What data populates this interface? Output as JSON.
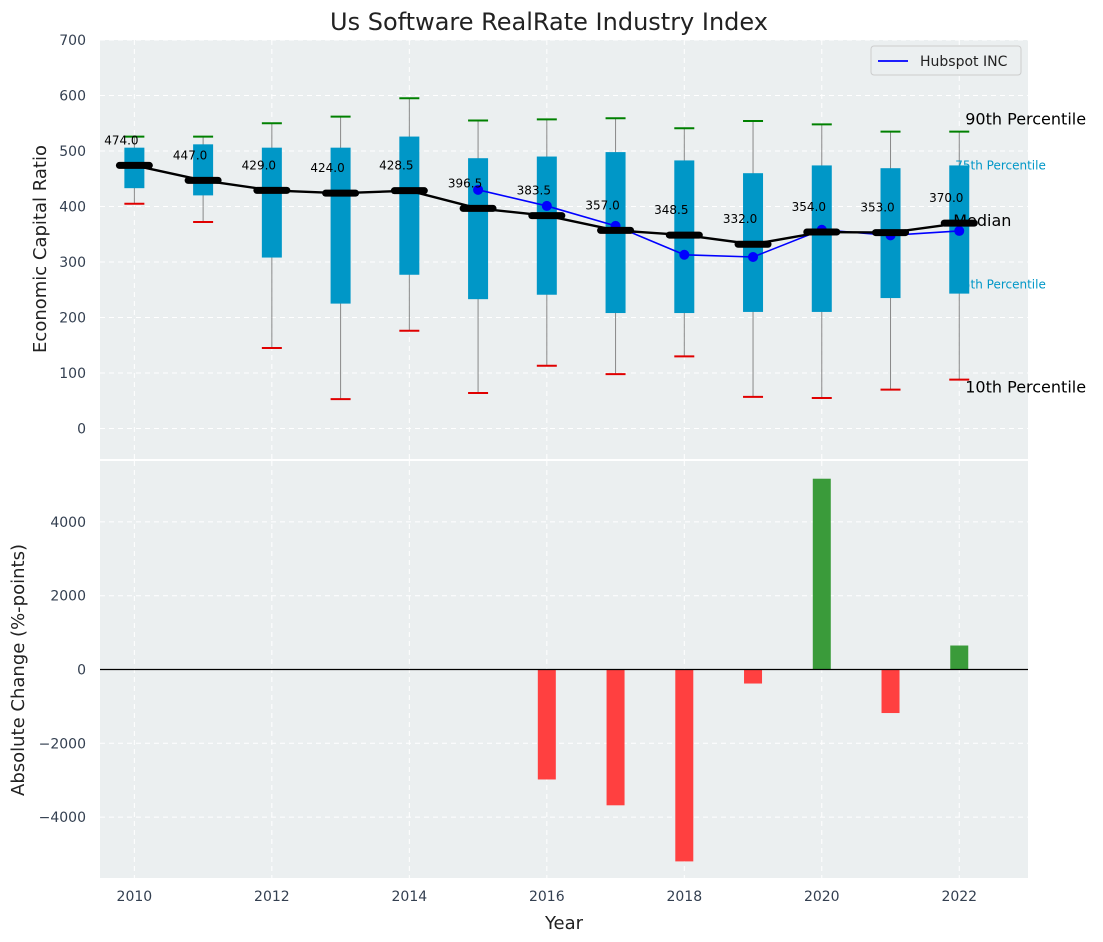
{
  "colors": {
    "plot_bg": "#ebeff0",
    "grid": "#ffffff",
    "box": "#0097c7",
    "median": "#000000",
    "whisker": "#888888",
    "cap_high": "#008000",
    "cap_low": "#e00000",
    "company": "#0000ff",
    "bar_pos": "#3a9b3a",
    "bar_neg": "#ff4040",
    "percentile_small": "#0097c7"
  },
  "chart_data": [
    {
      "type": "box",
      "title": "Us Software RealRate Industry Index",
      "xlabel": "",
      "ylabel": "Economic Capital Ratio",
      "xlim": [
        2009.5,
        2023
      ],
      "ylim": [
        -55,
        700
      ],
      "yticks": [
        0,
        100,
        200,
        300,
        400,
        500,
        600,
        700
      ],
      "grid": true,
      "legend": {
        "placement": "top-right",
        "entries": [
          "Hubspot INC"
        ]
      },
      "x": [
        2010,
        2011,
        2012,
        2013,
        2014,
        2015,
        2016,
        2017,
        2018,
        2019,
        2020,
        2021,
        2022
      ],
      "p10": [
        405,
        372,
        145,
        53,
        176,
        64,
        113,
        98,
        130,
        57,
        55,
        70,
        88
      ],
      "p25": [
        433,
        420,
        308,
        225,
        277,
        233,
        241,
        208,
        208,
        210,
        210,
        235,
        243
      ],
      "median": [
        474.0,
        447.0,
        429.0,
        424.0,
        428.5,
        396.5,
        383.5,
        357.0,
        348.5,
        332.0,
        354.0,
        353.0,
        370.0
      ],
      "median_labels": [
        "474.0",
        "447.0",
        "429.0",
        "424.0",
        "428.5",
        "396.5",
        "383.5",
        "357.0",
        "348.5",
        "332.0",
        "354.0",
        "353.0",
        "370.0"
      ],
      "p75": [
        506,
        512,
        506,
        506,
        526,
        487,
        490,
        498,
        483,
        460,
        474,
        469,
        474
      ],
      "p90": [
        526,
        526,
        550,
        562,
        595,
        555,
        557,
        559,
        541,
        554,
        548,
        535,
        535
      ],
      "company_series": {
        "name": "Hubspot INC",
        "x": [
          2015,
          2016,
          2017,
          2018,
          2019,
          2020,
          2021,
          2022
        ],
        "values": [
          430,
          401,
          365,
          313,
          309,
          358,
          348,
          356
        ]
      },
      "percentile_annotations": {
        "p90": "90th Percentile",
        "p75": "75th Percentile",
        "median": "Median",
        "p25": "25th Percentile",
        "p10": "10th Percentile"
      }
    },
    {
      "type": "bar",
      "xlabel": "Year",
      "ylabel": "Absolute Change (%-points)",
      "xlim": [
        2009.5,
        2023
      ],
      "ylim": [
        -5650,
        5650
      ],
      "yticks": [
        -4000,
        -2000,
        0,
        2000,
        4000
      ],
      "ytick_labels": [
        "−4000",
        "−2000",
        "0",
        "2000",
        "4000"
      ],
      "xticks": [
        2010,
        2012,
        2014,
        2016,
        2018,
        2020,
        2022
      ],
      "grid": true,
      "categories": [
        2016,
        2017,
        2018,
        2019,
        2020,
        2021,
        2022
      ],
      "values": [
        -2980,
        -3680,
        -5200,
        -380,
        5170,
        -1180,
        650
      ]
    }
  ]
}
